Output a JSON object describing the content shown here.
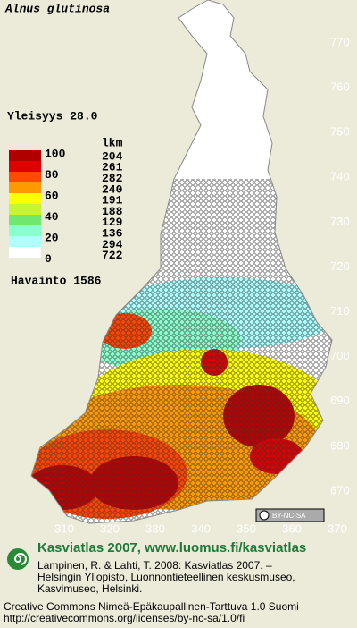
{
  "header": {
    "title": "Alnus glutinosa"
  },
  "frequency": "Yleisyys  28.0",
  "legend": {
    "levels": [
      "100",
      "80",
      "60",
      "40",
      "20",
      "0"
    ],
    "count_header": "lkm",
    "counts": [
      "204",
      "261",
      "282",
      "240",
      "191",
      "188",
      "129",
      "136",
      "294",
      "722"
    ],
    "observations": "Havainto 1586"
  },
  "grid": {
    "y_labels": [
      "770",
      "760",
      "750",
      "740",
      "730",
      "720",
      "710",
      "700",
      "690",
      "680",
      "670"
    ],
    "x_labels": [
      "310",
      "320",
      "330",
      "340",
      "350",
      "360",
      "370"
    ]
  },
  "license_badge": "BY-NC-SA",
  "footer": {
    "site": "Kasviatlas 2007, www.luomus.fi/kasviatlas",
    "citation": [
      "Lampinen, R. & Lahti, T. 2008: Kasviatlas 2007. –",
      "Helsingin Yliopisto, Luonnontieteellinen keskusmuseo,",
      "Kasvimuseo, Helsinki."
    ],
    "license": "Creative Commons Nimeä-Epäkaupallinen-Tarttuva 1.0 Suomi",
    "license_url": "http://creativecommons.org/licenses/by-nc-sa/1.0/fi"
  }
}
